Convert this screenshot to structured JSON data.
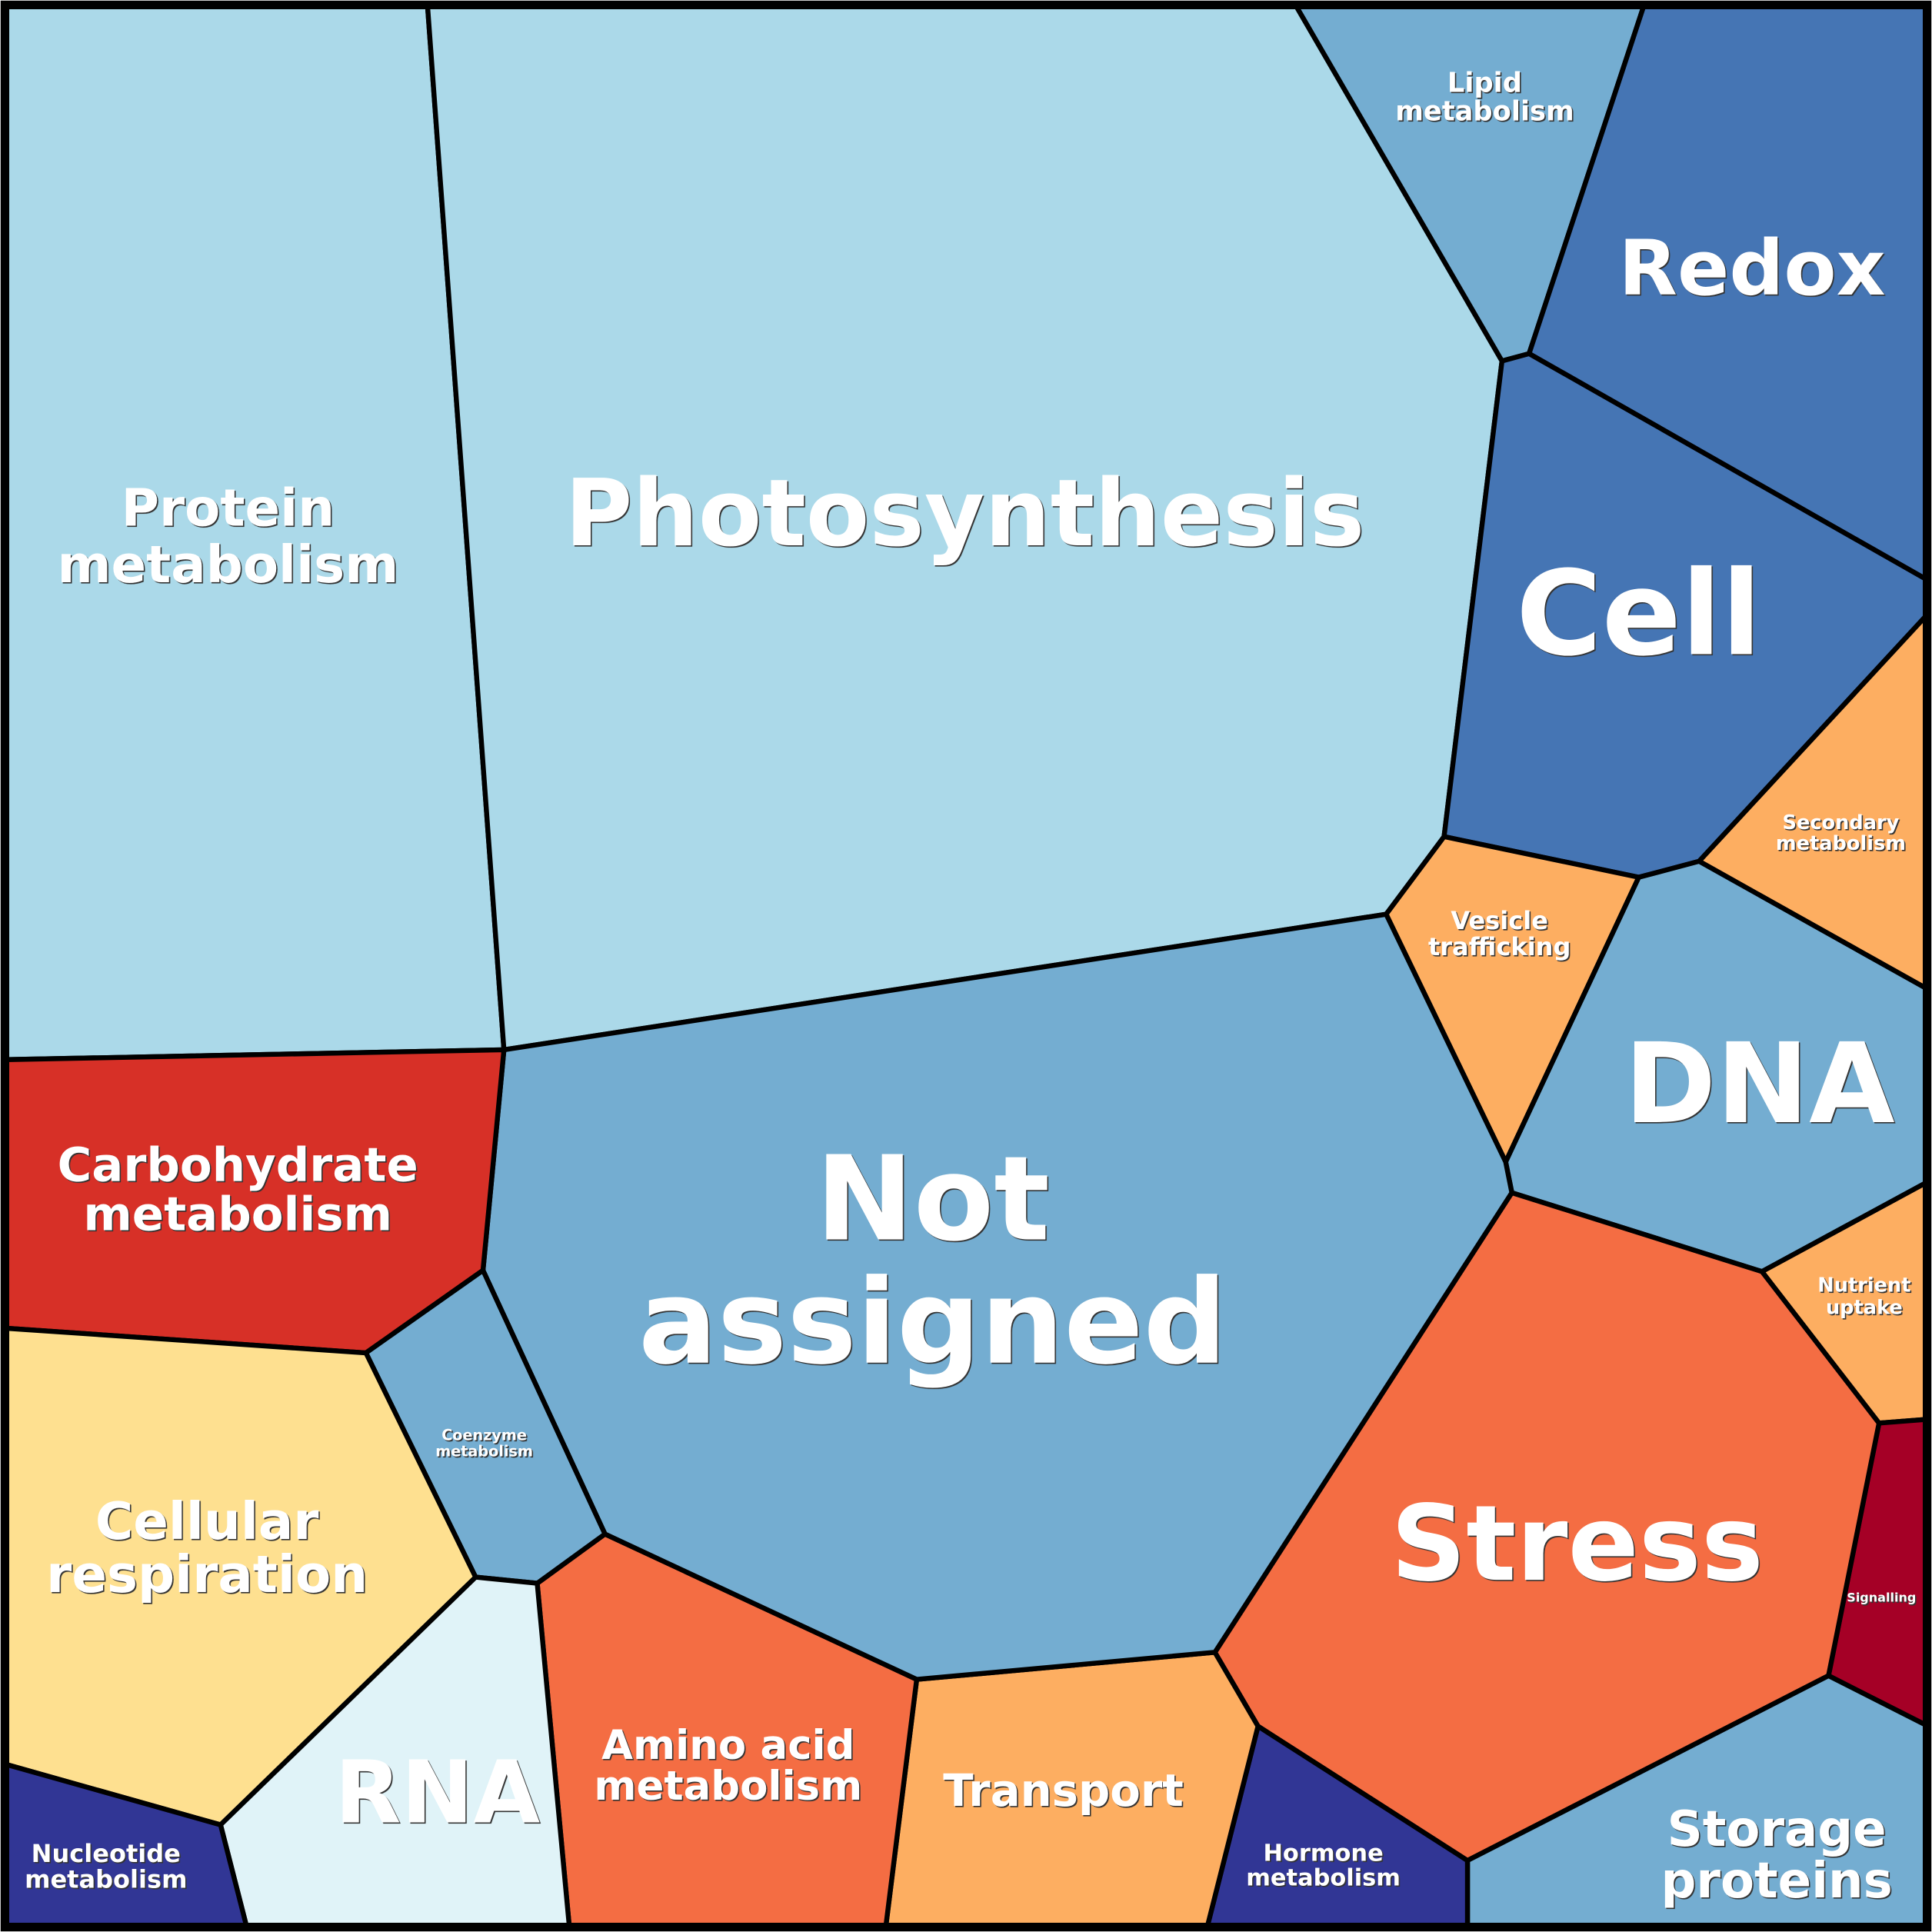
{
  "nodes": [
    {
      "label": [
        "Protein",
        "metabolism"
      ]
    },
    {
      "label": [
        "Photosynthesis"
      ]
    },
    {
      "label": [
        "Lipid",
        "metabolism"
      ]
    },
    {
      "label": [
        "Redox"
      ]
    },
    {
      "label": [
        "Cell"
      ]
    },
    {
      "label": [
        "Secondary",
        "metabolism"
      ]
    },
    {
      "label": [
        "Vesicle",
        "trafficking"
      ]
    },
    {
      "label": [
        "DNA"
      ]
    },
    {
      "label": [
        "Nutrient",
        "uptake"
      ]
    },
    {
      "label": [
        "Signalling"
      ]
    },
    {
      "label": [
        "Stress"
      ]
    },
    {
      "label": [
        "Storage",
        "proteins"
      ]
    },
    {
      "label": [
        "Hormone",
        "metabolism"
      ]
    },
    {
      "label": [
        "Transport"
      ]
    },
    {
      "label": [
        "Amino acid",
        "metabolism"
      ]
    },
    {
      "label": [
        "Not",
        "assigned"
      ]
    },
    {
      "label": [
        "Carbohydrate",
        "metabolism"
      ]
    },
    {
      "label": [
        "Coenzyme",
        "metabolism"
      ]
    },
    {
      "label": [
        "Cellular",
        "respiration"
      ]
    },
    {
      "label": [
        "RNA"
      ]
    },
    {
      "label": [
        "Nucleotide",
        "metabolism"
      ]
    }
  ]
}
